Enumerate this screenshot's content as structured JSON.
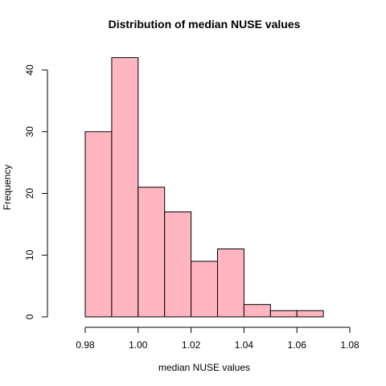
{
  "chart_data": {
    "type": "bar",
    "title": "Distribution of median NUSE values",
    "xlabel": "median NUSE values",
    "ylabel": "Frequency",
    "bin_edges": [
      0.98,
      0.99,
      1.0,
      1.01,
      1.02,
      1.03,
      1.04,
      1.05,
      1.06,
      1.07
    ],
    "values": [
      30,
      42,
      21,
      17,
      9,
      11,
      2,
      1,
      1
    ],
    "xlim": [
      0.98,
      1.08
    ],
    "ylim": [
      0,
      40
    ],
    "x_ticks": [
      "0.98",
      "1.00",
      "1.02",
      "1.04",
      "1.06",
      "1.08"
    ],
    "y_ticks": [
      "0",
      "10",
      "20",
      "30",
      "40"
    ],
    "bar_color": "#FFB6C1",
    "grid": false,
    "legend": "none"
  }
}
